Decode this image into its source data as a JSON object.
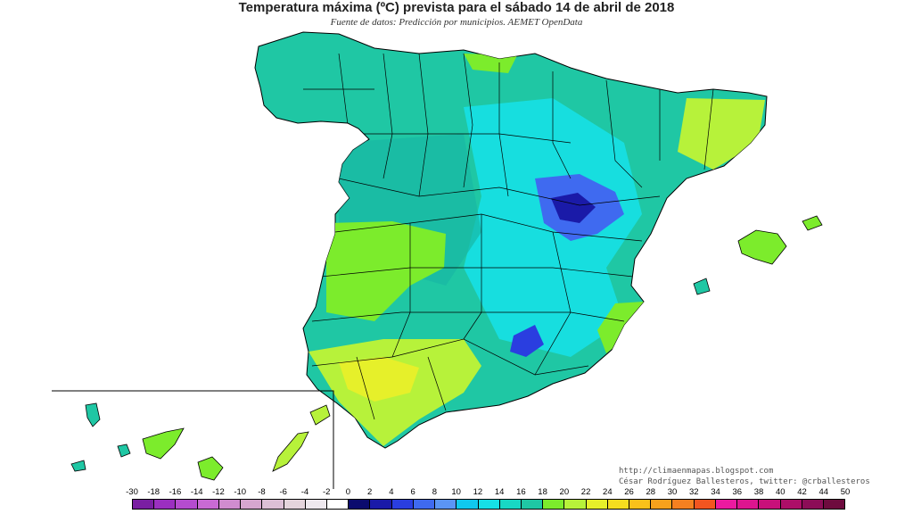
{
  "title": "Temperatura máxima (ºC) prevista para el sábado 14 de abril de 2018",
  "subtitle": "Fuente de datos: Predicción por municipios. AEMET OpenData",
  "credits": {
    "url": "http://climaenmapas.blogspot.com",
    "author": "César Rodríguez Ballesteros, twitter: @crballesteros"
  },
  "legend": {
    "labels": [
      "-30",
      "-18",
      "-16",
      "-14",
      "-12",
      "-10",
      "-8",
      "-6",
      "-4",
      "-2",
      "0",
      "2",
      "4",
      "6",
      "8",
      "10",
      "12",
      "14",
      "16",
      "18",
      "20",
      "22",
      "24",
      "26",
      "28",
      "30",
      "32",
      "34",
      "36",
      "38",
      "40",
      "42",
      "44",
      "50"
    ],
    "colors": [
      "#7a1fa2",
      "#9b2fc0",
      "#b54ccf",
      "#c86ad4",
      "#d08ccf",
      "#d6a6cf",
      "#dcbfd6",
      "#e4d4dc",
      "#eee8ee",
      "#ffffff",
      "#0b0b6e",
      "#1a1aa8",
      "#2a3ee0",
      "#3f6af0",
      "#5b95f5",
      "#10c8ee",
      "#16e0e6",
      "#18d8c4",
      "#1fc7a4",
      "#7cec2c",
      "#b7f23a",
      "#e6f02a",
      "#f5dd1f",
      "#f9c11a",
      "#f7a11c",
      "#f58020",
      "#f25520",
      "#ec1aa0",
      "#dd158f",
      "#c8107a",
      "#ad0e68",
      "#8c0d57",
      "#6e0b3e"
    ]
  },
  "map": {
    "region": "España",
    "inset": "Islas Canarias"
  }
}
